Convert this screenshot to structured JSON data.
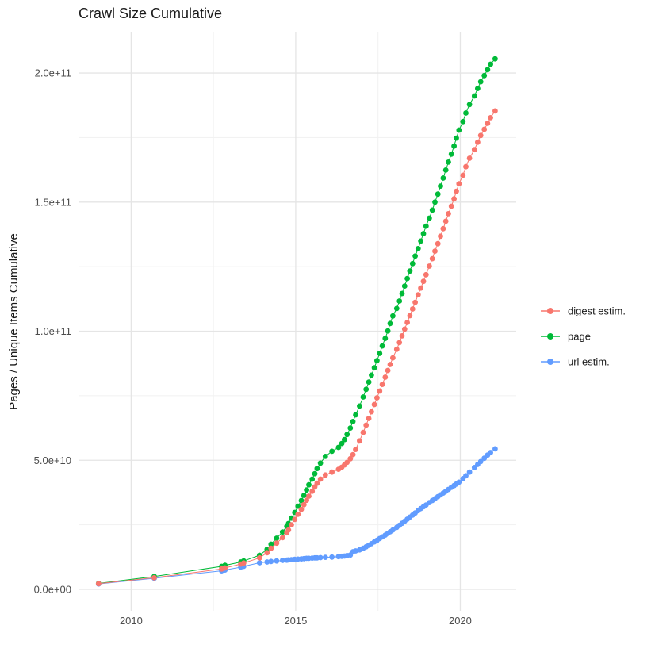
{
  "page": {
    "background": "#ffffff"
  },
  "chart_data": {
    "type": "scatter",
    "title": "Crawl Size Cumulative",
    "xlabel": "",
    "ylabel": "Pages / Unique Items Cumulative",
    "x_unit": "year (Common Crawl monthly crawls)",
    "y_unit": "count, billions (1e9)",
    "grid": true,
    "legend_position": "right",
    "xlim": [
      2008.4,
      2021.7
    ],
    "ylim_e9": [
      -8.3,
      216
    ],
    "x_ticks": [
      {
        "value": 2010,
        "label": "2010"
      },
      {
        "value": 2015,
        "label": "2015"
      },
      {
        "value": 2020,
        "label": "2020"
      }
    ],
    "y_ticks": [
      {
        "value_e9": 0,
        "label": "0.0e+00"
      },
      {
        "value_e9": 50,
        "label": "5.0e+10"
      },
      {
        "value_e9": 100,
        "label": "1.0e+11"
      },
      {
        "value_e9": 150,
        "label": "1.5e+11"
      },
      {
        "value_e9": 200,
        "label": "2.0e+11"
      }
    ],
    "x_minor_gridlines": [
      2012.5,
      2017.5
    ],
    "y_minor_gridlines_e9": [
      25,
      75,
      125,
      175
    ],
    "draw_order": [
      2,
      1,
      0
    ],
    "series": [
      {
        "name": "digest estim.",
        "color": "#F8766D",
        "points_year_billions": [
          [
            2009.01,
            2.2
          ],
          [
            2010.7,
            4.5
          ],
          [
            2012.75,
            7.9
          ],
          [
            2012.85,
            8.3
          ],
          [
            2013.33,
            9.8
          ],
          [
            2013.42,
            10.2
          ],
          [
            2013.9,
            12.2
          ],
          [
            2014.13,
            14.2
          ],
          [
            2014.25,
            15.9
          ],
          [
            2014.42,
            17.9
          ],
          [
            2014.6,
            20.0
          ],
          [
            2014.73,
            21.9
          ],
          [
            2014.78,
            23.0
          ],
          [
            2014.87,
            25.0
          ],
          [
            2014.97,
            27.1
          ],
          [
            2015.07,
            29.1
          ],
          [
            2015.17,
            31.0
          ],
          [
            2015.25,
            32.8
          ],
          [
            2015.33,
            34.5
          ],
          [
            2015.4,
            36.1
          ],
          [
            2015.5,
            38.0
          ],
          [
            2015.58,
            39.7
          ],
          [
            2015.65,
            41.1
          ],
          [
            2015.75,
            42.7
          ],
          [
            2015.9,
            44.3
          ],
          [
            2016.1,
            45.4
          ],
          [
            2016.3,
            46.5
          ],
          [
            2016.4,
            47.3
          ],
          [
            2016.48,
            48.2
          ],
          [
            2016.56,
            49.2
          ],
          [
            2016.66,
            50.6
          ],
          [
            2016.74,
            52.2
          ],
          [
            2016.82,
            54.2
          ],
          [
            2016.94,
            57.5
          ],
          [
            2017.05,
            60.8
          ],
          [
            2017.14,
            63.6
          ],
          [
            2017.22,
            66.2
          ],
          [
            2017.3,
            68.8
          ],
          [
            2017.39,
            71.6
          ],
          [
            2017.47,
            74.2
          ],
          [
            2017.55,
            76.8
          ],
          [
            2017.63,
            79.4
          ],
          [
            2017.72,
            82.2
          ],
          [
            2017.8,
            84.8
          ],
          [
            2017.87,
            87.1
          ],
          [
            2017.95,
            89.7
          ],
          [
            2018.07,
            93.0
          ],
          [
            2018.15,
            95.6
          ],
          [
            2018.23,
            98.2
          ],
          [
            2018.31,
            100.8
          ],
          [
            2018.39,
            103.4
          ],
          [
            2018.47,
            106.0
          ],
          [
            2018.55,
            108.6
          ],
          [
            2018.63,
            111.2
          ],
          [
            2018.72,
            114.1
          ],
          [
            2018.8,
            116.7
          ],
          [
            2018.88,
            119.3
          ],
          [
            2018.96,
            121.9
          ],
          [
            2019.06,
            125.2
          ],
          [
            2019.15,
            128.1
          ],
          [
            2019.23,
            131.0
          ],
          [
            2019.32,
            133.9
          ],
          [
            2019.4,
            136.8
          ],
          [
            2019.48,
            139.7
          ],
          [
            2019.56,
            142.6
          ],
          [
            2019.64,
            145.5
          ],
          [
            2019.73,
            148.4
          ],
          [
            2019.81,
            151.3
          ],
          [
            2019.88,
            154.2
          ],
          [
            2019.96,
            157.1
          ],
          [
            2020.08,
            160.4
          ],
          [
            2020.17,
            163.7
          ],
          [
            2020.28,
            167.0
          ],
          [
            2020.43,
            170.3
          ],
          [
            2020.53,
            173.2
          ],
          [
            2020.62,
            175.8
          ],
          [
            2020.73,
            178.2
          ],
          [
            2020.83,
            180.5
          ],
          [
            2020.92,
            182.7
          ],
          [
            2021.06,
            185.3
          ]
        ]
      },
      {
        "name": "page",
        "color": "#00BA38",
        "points_year_billions": [
          [
            2009.01,
            2.3
          ],
          [
            2010.7,
            5.0
          ],
          [
            2012.75,
            8.9
          ],
          [
            2012.85,
            9.3
          ],
          [
            2013.33,
            10.6
          ],
          [
            2013.42,
            11.0
          ],
          [
            2013.9,
            13.2
          ],
          [
            2014.13,
            15.5
          ],
          [
            2014.25,
            17.5
          ],
          [
            2014.42,
            19.8
          ],
          [
            2014.6,
            22.2
          ],
          [
            2014.73,
            24.4
          ],
          [
            2014.78,
            25.5
          ],
          [
            2014.87,
            27.6
          ],
          [
            2014.97,
            29.8
          ],
          [
            2015.07,
            32.2
          ],
          [
            2015.17,
            34.4
          ],
          [
            2015.25,
            36.4
          ],
          [
            2015.33,
            38.5
          ],
          [
            2015.4,
            40.5
          ],
          [
            2015.5,
            42.7
          ],
          [
            2015.58,
            44.8
          ],
          [
            2015.65,
            46.8
          ],
          [
            2015.75,
            48.9
          ],
          [
            2015.9,
            51.5
          ],
          [
            2016.1,
            53.5
          ],
          [
            2016.3,
            55.0
          ],
          [
            2016.4,
            56.5
          ],
          [
            2016.48,
            58.0
          ],
          [
            2016.56,
            60.0
          ],
          [
            2016.66,
            62.5
          ],
          [
            2016.74,
            65.0
          ],
          [
            2016.82,
            67.6
          ],
          [
            2016.94,
            71.0
          ],
          [
            2017.05,
            74.5
          ],
          [
            2017.14,
            77.5
          ],
          [
            2017.22,
            80.3
          ],
          [
            2017.3,
            83.0
          ],
          [
            2017.39,
            85.8
          ],
          [
            2017.47,
            88.6
          ],
          [
            2017.55,
            91.4
          ],
          [
            2017.63,
            94.3
          ],
          [
            2017.72,
            97.2
          ],
          [
            2017.8,
            100.1
          ],
          [
            2017.87,
            103.0
          ],
          [
            2017.95,
            105.9
          ],
          [
            2018.07,
            108.8
          ],
          [
            2018.15,
            111.7
          ],
          [
            2018.23,
            114.6
          ],
          [
            2018.31,
            117.5
          ],
          [
            2018.39,
            120.4
          ],
          [
            2018.47,
            123.3
          ],
          [
            2018.55,
            126.2
          ],
          [
            2018.63,
            129.1
          ],
          [
            2018.72,
            132.0
          ],
          [
            2018.8,
            134.9
          ],
          [
            2018.88,
            137.8
          ],
          [
            2018.96,
            140.7
          ],
          [
            2019.06,
            143.8
          ],
          [
            2019.15,
            146.9
          ],
          [
            2019.23,
            150.0
          ],
          [
            2019.32,
            153.1
          ],
          [
            2019.4,
            156.2
          ],
          [
            2019.48,
            159.3
          ],
          [
            2019.56,
            162.4
          ],
          [
            2019.64,
            165.5
          ],
          [
            2019.73,
            168.6
          ],
          [
            2019.81,
            171.7
          ],
          [
            2019.88,
            174.8
          ],
          [
            2019.96,
            177.9
          ],
          [
            2020.08,
            181.2
          ],
          [
            2020.17,
            184.5
          ],
          [
            2020.28,
            187.8
          ],
          [
            2020.43,
            191.1
          ],
          [
            2020.53,
            194.0
          ],
          [
            2020.62,
            196.6
          ],
          [
            2020.73,
            199.0
          ],
          [
            2020.83,
            201.3
          ],
          [
            2020.92,
            203.4
          ],
          [
            2021.06,
            205.5
          ]
        ]
      },
      {
        "name": "url estim.",
        "color": "#619CFF",
        "points_year_billions": [
          [
            2009.01,
            2.1
          ],
          [
            2010.7,
            4.3
          ],
          [
            2012.75,
            7.2
          ],
          [
            2012.85,
            7.5
          ],
          [
            2013.33,
            8.6
          ],
          [
            2013.42,
            8.9
          ],
          [
            2013.9,
            10.3
          ],
          [
            2014.13,
            10.6
          ],
          [
            2014.25,
            10.8
          ],
          [
            2014.42,
            11.0
          ],
          [
            2014.6,
            11.2
          ],
          [
            2014.73,
            11.3
          ],
          [
            2014.78,
            11.4
          ],
          [
            2014.87,
            11.5
          ],
          [
            2014.97,
            11.6
          ],
          [
            2015.07,
            11.7
          ],
          [
            2015.17,
            11.8
          ],
          [
            2015.25,
            11.9
          ],
          [
            2015.33,
            12.0
          ],
          [
            2015.4,
            12.0
          ],
          [
            2015.5,
            12.1
          ],
          [
            2015.58,
            12.2
          ],
          [
            2015.65,
            12.2
          ],
          [
            2015.75,
            12.3
          ],
          [
            2015.9,
            12.4
          ],
          [
            2016.1,
            12.5
          ],
          [
            2016.3,
            12.7
          ],
          [
            2016.4,
            12.8
          ],
          [
            2016.48,
            12.9
          ],
          [
            2016.56,
            13.1
          ],
          [
            2016.66,
            13.3
          ],
          [
            2016.74,
            14.6
          ],
          [
            2016.82,
            14.9
          ],
          [
            2016.94,
            15.3
          ],
          [
            2017.05,
            15.9
          ],
          [
            2017.14,
            16.5
          ],
          [
            2017.22,
            17.1
          ],
          [
            2017.3,
            17.7
          ],
          [
            2017.39,
            18.4
          ],
          [
            2017.47,
            19.0
          ],
          [
            2017.55,
            19.7
          ],
          [
            2017.63,
            20.3
          ],
          [
            2017.72,
            21.0
          ],
          [
            2017.8,
            21.7
          ],
          [
            2017.87,
            22.3
          ],
          [
            2017.95,
            23.0
          ],
          [
            2018.07,
            24.0
          ],
          [
            2018.15,
            24.8
          ],
          [
            2018.23,
            25.6
          ],
          [
            2018.31,
            26.4
          ],
          [
            2018.39,
            27.2
          ],
          [
            2018.47,
            28.0
          ],
          [
            2018.55,
            28.8
          ],
          [
            2018.63,
            29.6
          ],
          [
            2018.72,
            30.5
          ],
          [
            2018.8,
            31.3
          ],
          [
            2018.88,
            32.0
          ],
          [
            2018.96,
            32.7
          ],
          [
            2019.06,
            33.6
          ],
          [
            2019.15,
            34.4
          ],
          [
            2019.23,
            35.1
          ],
          [
            2019.32,
            35.9
          ],
          [
            2019.4,
            36.6
          ],
          [
            2019.48,
            37.3
          ],
          [
            2019.56,
            38.0
          ],
          [
            2019.64,
            38.7
          ],
          [
            2019.73,
            39.5
          ],
          [
            2019.81,
            40.2
          ],
          [
            2019.88,
            40.8
          ],
          [
            2019.96,
            41.5
          ],
          [
            2020.08,
            42.9
          ],
          [
            2020.17,
            44.0
          ],
          [
            2020.28,
            45.4
          ],
          [
            2020.43,
            47.2
          ],
          [
            2020.53,
            48.4
          ],
          [
            2020.62,
            49.5
          ],
          [
            2020.73,
            50.8
          ],
          [
            2020.83,
            52.0
          ],
          [
            2020.92,
            53.0
          ],
          [
            2021.06,
            54.4
          ]
        ]
      }
    ]
  },
  "legend": {
    "items": [
      {
        "label": "digest estim.",
        "color": "#F8766D"
      },
      {
        "label": "page",
        "color": "#00BA38"
      },
      {
        "label": "url estim.",
        "color": "#619CFF"
      }
    ]
  },
  "style": {
    "grid_major_color": "#e5e5e5",
    "grid_minor_color": "#f1f1f1",
    "tick_label_color": "#4d4d4d",
    "text_color": "#1a1a1a",
    "background": "#ffffff"
  }
}
